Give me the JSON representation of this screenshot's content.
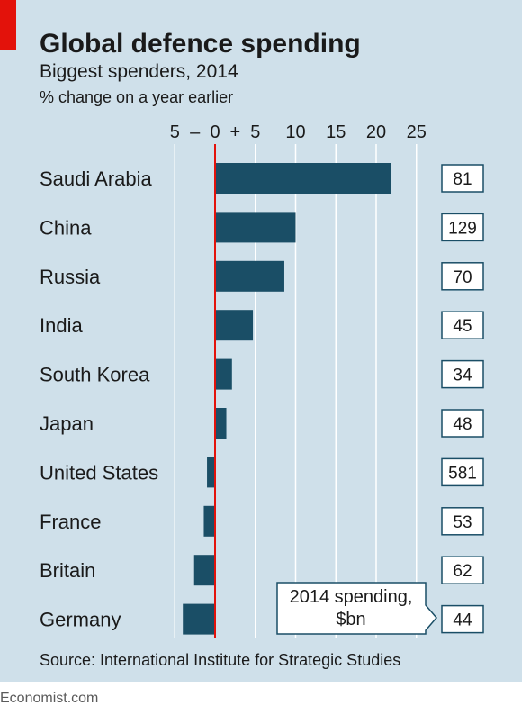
{
  "chart_data": {
    "type": "bar",
    "orientation": "horizontal",
    "title": "Global defence spending",
    "subtitle": "Biggest spenders, 2014",
    "unit_label": "% change on a year earlier",
    "categories": [
      "Saudi Arabia",
      "China",
      "Russia",
      "India",
      "South Korea",
      "Japan",
      "United States",
      "France",
      "Britain",
      "Germany"
    ],
    "values": [
      21.8,
      10.0,
      8.6,
      4.7,
      2.1,
      1.4,
      -1.0,
      -1.4,
      -2.6,
      -4.0
    ],
    "xlim": [
      -5,
      25
    ],
    "x_ticks": [
      -5,
      0,
      5,
      10,
      15,
      20,
      25
    ],
    "x_tick_labels": [
      "5",
      "0",
      "5",
      "10",
      "15",
      "20",
      "25"
    ],
    "x_tick_prefix_minus": "–",
    "x_tick_prefix_plus": "+",
    "grid": true,
    "zero_line": true,
    "side_values": [
      "81",
      "129",
      "70",
      "45",
      "34",
      "48",
      "581",
      "53",
      "62",
      "44"
    ],
    "side_values_label": "2014 spending,\n$bn",
    "source": "Source: International Institute for Strategic Studies",
    "branding": "Economist.com"
  },
  "colors": {
    "background": "#cfe0ea",
    "bar": "#1a4e66",
    "zero_line": "#e3120b",
    "accent": "#e3120b",
    "text": "#1a1a1a",
    "grid": "#ffffff",
    "box_border": "#1a4e66"
  }
}
